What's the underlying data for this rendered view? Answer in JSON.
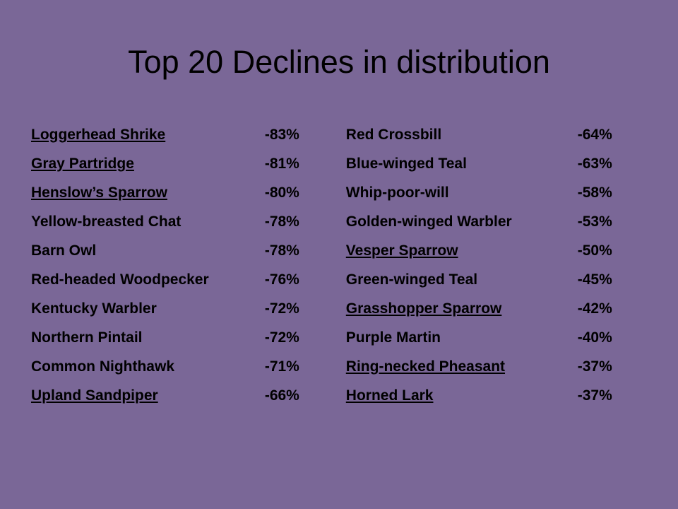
{
  "title": "Top 20 Declines in distribution",
  "colors": {
    "background": "#7a6797",
    "text": "#000000"
  },
  "rows": [
    {
      "left": {
        "name": "Loggerhead Shrike",
        "value": "-83%",
        "linked": true
      },
      "right": {
        "name": "Red Crossbill",
        "value": "-64%",
        "linked": false
      }
    },
    {
      "left": {
        "name": "Gray Partridge",
        "value": "-81%",
        "linked": true
      },
      "right": {
        "name": "Blue-winged Teal",
        "value": "-63%",
        "linked": false
      }
    },
    {
      "left": {
        "name": "Henslow’s Sparrow",
        "value": "-80%",
        "linked": true
      },
      "right": {
        "name": "Whip-poor-will",
        "value": "-58%",
        "linked": false
      }
    },
    {
      "left": {
        "name": "Yellow-breasted Chat",
        "value": "-78%",
        "linked": false
      },
      "right": {
        "name": "Golden-winged Warbler",
        "value": "-53%",
        "linked": false
      }
    },
    {
      "left": {
        "name": "Barn Owl",
        "value": "-78%",
        "linked": false
      },
      "right": {
        "name": "Vesper Sparrow",
        "value": "-50%",
        "linked": true
      }
    },
    {
      "left": {
        "name": "Red-headed Woodpecker",
        "value": "-76%",
        "linked": false
      },
      "right": {
        "name": "Green-winged Teal",
        "value": "-45%",
        "linked": false
      }
    },
    {
      "left": {
        "name": "Kentucky Warbler",
        "value": "-72%",
        "linked": false
      },
      "right": {
        "name": "Grasshopper Sparrow",
        "value": "-42%",
        "linked": true
      }
    },
    {
      "left": {
        "name": "Northern Pintail",
        "value": "-72%",
        "linked": false
      },
      "right": {
        "name": "Purple Martin",
        "value": "-40%",
        "linked": false
      }
    },
    {
      "left": {
        "name": "Common Nighthawk",
        "value": "-71%",
        "linked": false
      },
      "right": {
        "name": "Ring-necked Pheasant",
        "value": "-37%",
        "linked": true
      }
    },
    {
      "left": {
        "name": "Upland Sandpiper",
        "value": "-66%",
        "linked": true
      },
      "right": {
        "name": "Horned Lark",
        "value": "-37%",
        "linked": true
      }
    }
  ]
}
